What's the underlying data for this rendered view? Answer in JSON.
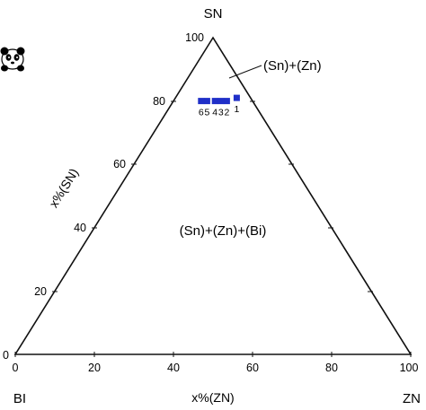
{
  "diagram": {
    "type": "ternary-phase-diagram",
    "vertices": {
      "top": "SN",
      "left": "BI",
      "right": "ZN"
    },
    "axis_labels": {
      "left": "x%(SN)",
      "bottom": "x%(ZN)"
    },
    "left_ticks": [
      "0",
      "20",
      "40",
      "60",
      "80",
      "100"
    ],
    "bottom_ticks": [
      "0",
      "20",
      "40",
      "60",
      "80",
      "100"
    ],
    "regions": {
      "ternary": "(Sn)+(Zn)+(Bi)",
      "binary": "(Sn)+(Zn)"
    },
    "points": [
      {
        "label": "1",
        "sn": 81,
        "zn": 15.5
      },
      {
        "label": "2",
        "sn": 80,
        "zn": 13.5
      },
      {
        "label": "3",
        "sn": 80,
        "zn": 12.0
      },
      {
        "label": "4",
        "sn": 80,
        "zn": 10.5
      },
      {
        "label": "5",
        "sn": 80,
        "zn": 8.5
      },
      {
        "label": "6",
        "sn": 80,
        "zn": 7.0
      }
    ],
    "point_color": "#1f2fc8",
    "line_color": "#111111"
  },
  "logo": {
    "name": "panda-icon"
  }
}
